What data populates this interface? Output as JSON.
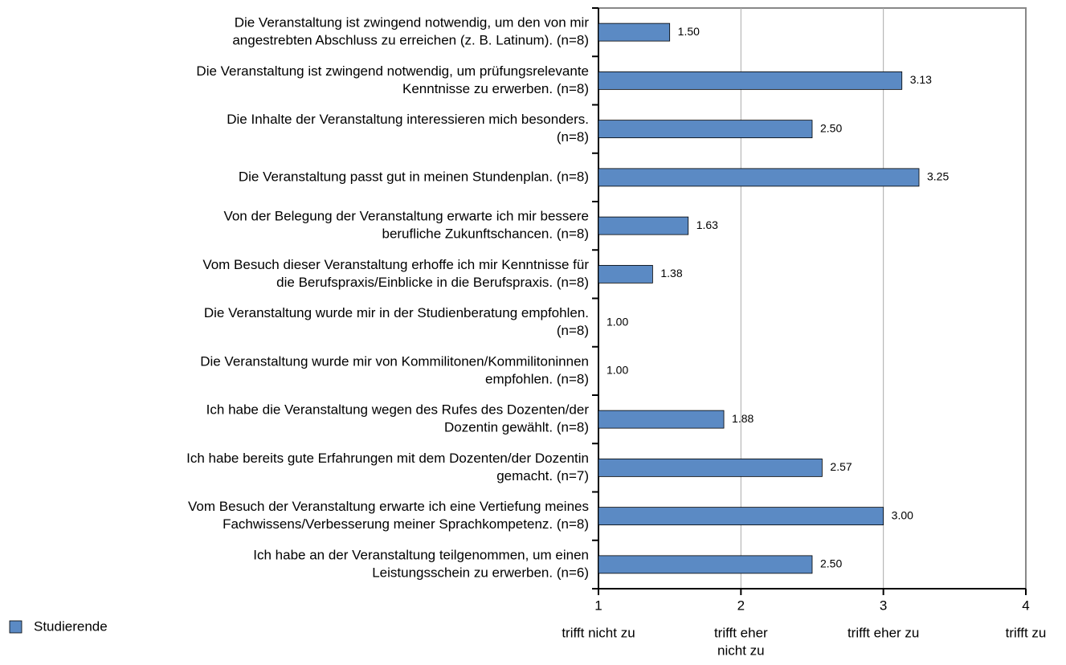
{
  "chart_data": {
    "type": "barh",
    "categories": [
      [
        "Die Veranstaltung ist zwingend notwendig, um den von mir",
        "angestrebten Abschluss zu erreichen (z. B. Latinum).   (n=8)"
      ],
      [
        "Die Veranstaltung ist zwingend notwendig, um prüfungsrelevante",
        "Kenntnisse zu erwerben.   (n=8)"
      ],
      [
        "Die Inhalte der Veranstaltung interessieren mich besonders.",
        "(n=8)"
      ],
      [
        "Die Veranstaltung passt gut in meinen Stundenplan.   (n=8)"
      ],
      [
        "Von der Belegung der Veranstaltung erwarte ich mir bessere",
        "berufliche Zukunftschancen.   (n=8)"
      ],
      [
        "Vom Besuch dieser Veranstaltung erhoffe ich mir Kenntnisse für",
        "die Berufspraxis/Einblicke in die Berufspraxis.   (n=8)"
      ],
      [
        "Die Veranstaltung wurde mir in der Studienberatung empfohlen.",
        "(n=8)"
      ],
      [
        "Die Veranstaltung wurde mir von Kommilitonen/Kommilitoninnen",
        "empfohlen.   (n=8)"
      ],
      [
        "Ich habe die Veranstaltung wegen des Rufes des Dozenten/der",
        "Dozentin gewählt.   (n=8)"
      ],
      [
        "Ich habe bereits gute Erfahrungen mit dem Dozenten/der Dozentin",
        "gemacht.   (n=7)"
      ],
      [
        "Vom Besuch der Veranstaltung erwarte ich eine Vertiefung meines",
        "Fachwissens/Verbesserung meiner Sprachkompetenz.   (n=8)"
      ],
      [
        "Ich habe an der Veranstaltung teilgenommen, um einen",
        "Leistungsschein zu erwerben.   (n=6)"
      ]
    ],
    "series": [
      {
        "name": "Studierende",
        "color": "#5b8ac4",
        "values": [
          1.5,
          3.13,
          2.5,
          3.25,
          1.63,
          1.38,
          1.0,
          1.0,
          1.88,
          2.57,
          3.0,
          2.5
        ],
        "value_labels": [
          "1.50",
          "3.13",
          "2.50",
          "3.25",
          "1.63",
          "1.38",
          "1.00",
          "1.00",
          "1.88",
          "2.57",
          "3.00",
          "2.50"
        ]
      }
    ],
    "xlim": [
      1,
      4
    ],
    "xticks": [
      1,
      2,
      3,
      4
    ],
    "scale_labels": [
      [
        "trifft nicht zu"
      ],
      [
        "trifft eher",
        "nicht  zu"
      ],
      [
        "trifft eher zu"
      ],
      [
        "trifft zu"
      ]
    ],
    "grid": true,
    "legend": "bottom-left"
  }
}
